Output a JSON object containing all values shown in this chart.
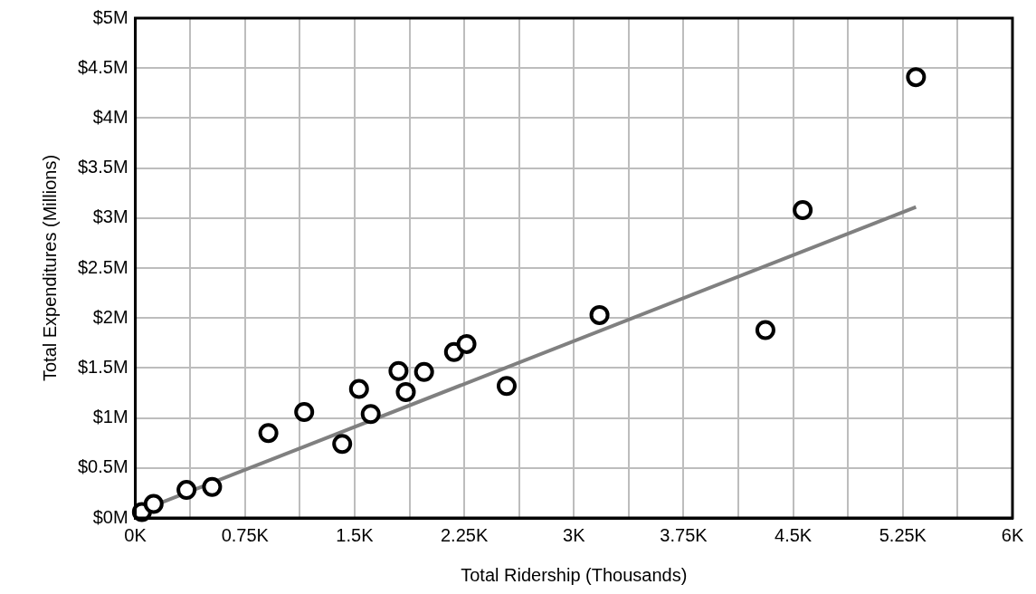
{
  "chart_data": {
    "type": "scatter",
    "xlabel": "Total Ridership (Thousands)",
    "ylabel": "Total Expenditures (Millions)",
    "xlim": [
      0,
      6000
    ],
    "ylim": [
      0,
      5
    ],
    "xticks": [
      {
        "value": 0,
        "label": "0K"
      },
      {
        "value": 375,
        "label": null
      },
      {
        "value": 750,
        "label": "0.75K"
      },
      {
        "value": 1125,
        "label": null
      },
      {
        "value": 1500,
        "label": "1.5K"
      },
      {
        "value": 1875,
        "label": null
      },
      {
        "value": 2250,
        "label": "2.25K"
      },
      {
        "value": 2625,
        "label": null
      },
      {
        "value": 3000,
        "label": "3K"
      },
      {
        "value": 3375,
        "label": null
      },
      {
        "value": 3750,
        "label": "3.75K"
      },
      {
        "value": 4125,
        "label": null
      },
      {
        "value": 4500,
        "label": "4.5K"
      },
      {
        "value": 4875,
        "label": null
      },
      {
        "value": 5250,
        "label": "5.25K"
      },
      {
        "value": 5625,
        "label": null
      },
      {
        "value": 6000,
        "label": "6K"
      }
    ],
    "yticks": [
      {
        "value": 0,
        "label": "$0M"
      },
      {
        "value": 0.5,
        "label": "$0.5M"
      },
      {
        "value": 1,
        "label": "$1M"
      },
      {
        "value": 1.5,
        "label": "$1.5M"
      },
      {
        "value": 2,
        "label": "$2M"
      },
      {
        "value": 2.5,
        "label": "$2.5M"
      },
      {
        "value": 3,
        "label": "$3M"
      },
      {
        "value": 3.5,
        "label": "$3.5M"
      },
      {
        "value": 4,
        "label": "$4M"
      },
      {
        "value": 4.5,
        "label": "$4.5M"
      },
      {
        "value": 5,
        "label": "$5M"
      }
    ],
    "grid": true,
    "legend": false,
    "marker": "circle",
    "series": [
      {
        "color": "#000000",
        "x": [
          45,
          125,
          350,
          525,
          910,
          1155,
          1415,
          1530,
          1610,
          1800,
          1850,
          1975,
          2180,
          2265,
          2540,
          3175,
          4310,
          4565,
          5340
        ],
        "values": [
          0.06,
          0.14,
          0.28,
          0.31,
          0.85,
          1.06,
          0.74,
          1.29,
          1.04,
          1.47,
          1.26,
          1.46,
          1.66,
          1.74,
          1.32,
          2.03,
          1.88,
          3.08,
          4.41
        ]
      },
      {
        "type": "line",
        "color": "#808080",
        "marker": "none",
        "x": [
          50,
          5340
        ],
        "values": [
          0.08,
          3.11
        ]
      }
    ]
  }
}
